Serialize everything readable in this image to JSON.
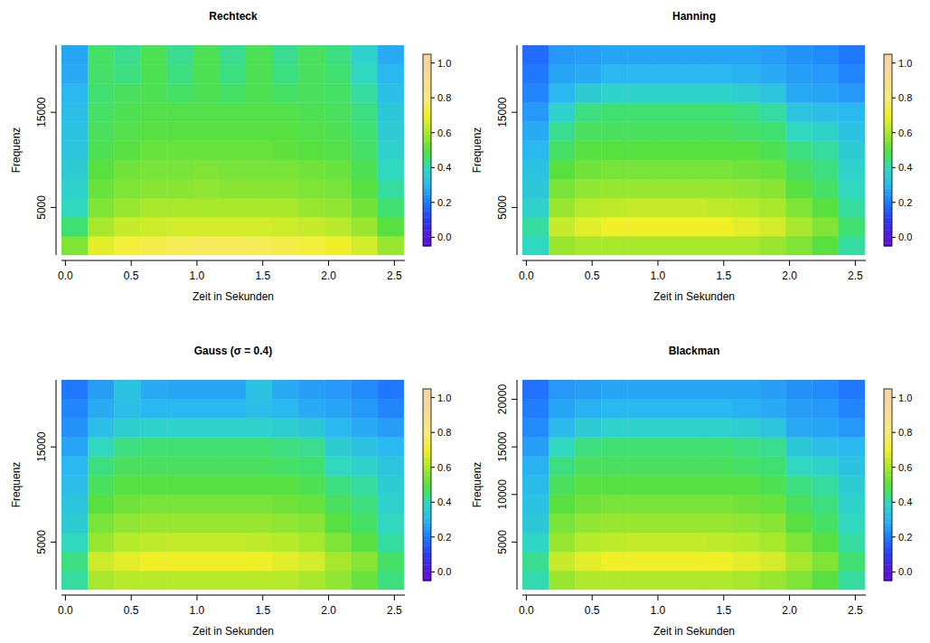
{
  "chart_data": [
    {
      "type": "heatmap",
      "title": "Rechteck",
      "x_label": "Zeit in Sekunden",
      "y_label": "Frequenz",
      "xlim": [
        -0.03,
        2.58
      ],
      "ylim": [
        0,
        22050
      ],
      "xticks": [
        {
          "value": 0,
          "label": "0.0"
        },
        0.5,
        {
          "value": 1,
          "label": "1.0"
        },
        1.5,
        {
          "value": 2,
          "label": "2.0"
        },
        2.5
      ],
      "yticks": [
        5000,
        15000
      ],
      "x": [
        0.07,
        0.27,
        0.47,
        0.67,
        0.87,
        1.07,
        1.27,
        1.47,
        1.67,
        1.87,
        2.07,
        2.27,
        2.47
      ],
      "y": [
        1002,
        3007,
        5011,
        7016,
        9020,
        11025,
        13030,
        15034,
        17039,
        19043,
        21048
      ],
      "z": [
        [
          0.55,
          0.68,
          0.72,
          0.74,
          0.75,
          0.76,
          0.76,
          0.75,
          0.74,
          0.72,
          0.7,
          0.66,
          0.58
        ],
        [
          0.45,
          0.6,
          0.64,
          0.65,
          0.66,
          0.66,
          0.66,
          0.66,
          0.65,
          0.64,
          0.62,
          0.58,
          0.5
        ],
        [
          0.4,
          0.55,
          0.58,
          0.6,
          0.6,
          0.6,
          0.6,
          0.6,
          0.6,
          0.58,
          0.57,
          0.53,
          0.45
        ],
        [
          0.38,
          0.52,
          0.55,
          0.56,
          0.56,
          0.57,
          0.56,
          0.56,
          0.56,
          0.55,
          0.54,
          0.5,
          0.42
        ],
        [
          0.36,
          0.5,
          0.53,
          0.54,
          0.54,
          0.55,
          0.54,
          0.54,
          0.54,
          0.53,
          0.52,
          0.48,
          0.4
        ],
        [
          0.34,
          0.48,
          0.5,
          0.52,
          0.52,
          0.52,
          0.52,
          0.52,
          0.51,
          0.5,
          0.49,
          0.46,
          0.38
        ],
        [
          0.33,
          0.47,
          0.49,
          0.5,
          0.5,
          0.5,
          0.5,
          0.5,
          0.5,
          0.49,
          0.48,
          0.45,
          0.36
        ],
        [
          0.32,
          0.46,
          0.48,
          0.49,
          0.49,
          0.49,
          0.49,
          0.49,
          0.49,
          0.48,
          0.47,
          0.44,
          0.35
        ],
        [
          0.3,
          0.45,
          0.47,
          0.48,
          0.46,
          0.48,
          0.46,
          0.48,
          0.46,
          0.47,
          0.46,
          0.42,
          0.32
        ],
        [
          0.28,
          0.46,
          0.44,
          0.48,
          0.44,
          0.48,
          0.44,
          0.48,
          0.44,
          0.47,
          0.45,
          0.4,
          0.3
        ],
        [
          0.27,
          0.46,
          0.43,
          0.48,
          0.43,
          0.48,
          0.43,
          0.48,
          0.43,
          0.47,
          0.44,
          0.38,
          0.28
        ]
      ],
      "colorbar_lim": [
        -0.05,
        1.05
      ],
      "colorbar_ticks": [
        {
          "value": 0,
          "label": "0.0"
        },
        0.2,
        0.4,
        0.6,
        0.8,
        {
          "value": 1,
          "label": "1.0"
        }
      ]
    },
    {
      "type": "heatmap",
      "title": "Hanning",
      "x_label": "Zeit in Sekunden",
      "y_label": "Frequenz",
      "xlim": [
        -0.03,
        2.58
      ],
      "ylim": [
        0,
        22050
      ],
      "xticks": [
        {
          "value": 0,
          "label": "0.0"
        },
        0.5,
        {
          "value": 1,
          "label": "1.0"
        },
        1.5,
        {
          "value": 2,
          "label": "2.0"
        },
        2.5
      ],
      "yticks": [
        5000,
        15000
      ],
      "x": [
        0.07,
        0.27,
        0.47,
        0.67,
        0.87,
        1.07,
        1.27,
        1.47,
        1.67,
        1.87,
        2.07,
        2.27,
        2.47
      ],
      "y": [
        1002,
        3007,
        5011,
        7016,
        9020,
        11025,
        13030,
        15034,
        17039,
        19043,
        21048
      ],
      "z": [
        [
          0.4,
          0.58,
          0.6,
          0.6,
          0.6,
          0.6,
          0.6,
          0.6,
          0.6,
          0.58,
          0.55,
          0.5,
          0.42
        ],
        [
          0.42,
          0.64,
          0.68,
          0.7,
          0.7,
          0.7,
          0.7,
          0.7,
          0.68,
          0.66,
          0.6,
          0.55,
          0.45
        ],
        [
          0.38,
          0.58,
          0.62,
          0.63,
          0.64,
          0.64,
          0.64,
          0.63,
          0.62,
          0.6,
          0.55,
          0.5,
          0.42
        ],
        [
          0.35,
          0.54,
          0.57,
          0.58,
          0.58,
          0.58,
          0.58,
          0.58,
          0.57,
          0.56,
          0.5,
          0.46,
          0.4
        ],
        [
          0.33,
          0.5,
          0.53,
          0.54,
          0.54,
          0.54,
          0.54,
          0.54,
          0.53,
          0.52,
          0.47,
          0.44,
          0.38
        ],
        [
          0.3,
          0.46,
          0.5,
          0.5,
          0.5,
          0.5,
          0.5,
          0.5,
          0.5,
          0.48,
          0.44,
          0.42,
          0.36
        ],
        [
          0.28,
          0.43,
          0.47,
          0.47,
          0.47,
          0.47,
          0.47,
          0.47,
          0.46,
          0.45,
          0.4,
          0.38,
          0.33
        ],
        [
          0.25,
          0.38,
          0.44,
          0.45,
          0.45,
          0.45,
          0.45,
          0.45,
          0.44,
          0.42,
          0.34,
          0.32,
          0.3
        ],
        [
          0.22,
          0.3,
          0.36,
          0.38,
          0.38,
          0.38,
          0.38,
          0.38,
          0.37,
          0.34,
          0.28,
          0.27,
          0.25
        ],
        [
          0.2,
          0.27,
          0.28,
          0.3,
          0.3,
          0.3,
          0.3,
          0.3,
          0.29,
          0.28,
          0.26,
          0.25,
          0.22
        ],
        [
          0.18,
          0.25,
          0.26,
          0.27,
          0.27,
          0.27,
          0.27,
          0.27,
          0.27,
          0.26,
          0.24,
          0.23,
          0.2
        ]
      ],
      "colorbar_lim": [
        -0.05,
        1.05
      ],
      "colorbar_ticks": [
        {
          "value": 0,
          "label": "0.0"
        },
        0.2,
        0.4,
        0.6,
        0.8,
        {
          "value": 1,
          "label": "1.0"
        }
      ]
    },
    {
      "type": "heatmap",
      "title": "Gauss (σ = 0.4)",
      "x_label": "Zeit in Sekunden",
      "y_label": "Frequenz",
      "xlim": [
        -0.03,
        2.58
      ],
      "ylim": [
        0,
        22050
      ],
      "xticks": [
        {
          "value": 0,
          "label": "0.0"
        },
        0.5,
        {
          "value": 1,
          "label": "1.0"
        },
        1.5,
        {
          "value": 2,
          "label": "2.0"
        },
        2.5
      ],
      "yticks": [
        5000,
        15000
      ],
      "x": [
        0.07,
        0.27,
        0.47,
        0.67,
        0.87,
        1.07,
        1.27,
        1.47,
        1.67,
        1.87,
        2.07,
        2.27,
        2.47
      ],
      "y": [
        1002,
        3007,
        5011,
        7016,
        9020,
        11025,
        13030,
        15034,
        17039,
        19043,
        21048
      ],
      "z": [
        [
          0.42,
          0.6,
          0.62,
          0.62,
          0.62,
          0.62,
          0.62,
          0.62,
          0.62,
          0.6,
          0.57,
          0.52,
          0.44
        ],
        [
          0.44,
          0.65,
          0.68,
          0.7,
          0.7,
          0.7,
          0.7,
          0.7,
          0.68,
          0.66,
          0.6,
          0.56,
          0.46
        ],
        [
          0.4,
          0.58,
          0.62,
          0.63,
          0.64,
          0.64,
          0.64,
          0.63,
          0.62,
          0.6,
          0.55,
          0.5,
          0.42
        ],
        [
          0.36,
          0.54,
          0.57,
          0.58,
          0.58,
          0.58,
          0.58,
          0.58,
          0.57,
          0.56,
          0.5,
          0.46,
          0.4
        ],
        [
          0.34,
          0.5,
          0.53,
          0.54,
          0.54,
          0.54,
          0.54,
          0.54,
          0.53,
          0.52,
          0.47,
          0.44,
          0.38
        ],
        [
          0.32,
          0.47,
          0.5,
          0.5,
          0.5,
          0.5,
          0.5,
          0.5,
          0.5,
          0.48,
          0.44,
          0.42,
          0.36
        ],
        [
          0.3,
          0.44,
          0.47,
          0.47,
          0.47,
          0.47,
          0.47,
          0.47,
          0.46,
          0.45,
          0.4,
          0.38,
          0.34
        ],
        [
          0.27,
          0.4,
          0.44,
          0.45,
          0.45,
          0.45,
          0.45,
          0.45,
          0.44,
          0.43,
          0.36,
          0.33,
          0.3
        ],
        [
          0.24,
          0.32,
          0.37,
          0.38,
          0.38,
          0.38,
          0.38,
          0.38,
          0.37,
          0.35,
          0.3,
          0.28,
          0.26
        ],
        [
          0.22,
          0.28,
          0.32,
          0.3,
          0.3,
          0.3,
          0.3,
          0.32,
          0.3,
          0.28,
          0.27,
          0.25,
          0.22
        ],
        [
          0.2,
          0.26,
          0.33,
          0.28,
          0.27,
          0.27,
          0.27,
          0.33,
          0.28,
          0.26,
          0.25,
          0.23,
          0.2
        ]
      ],
      "colorbar_lim": [
        -0.05,
        1.05
      ],
      "colorbar_ticks": [
        {
          "value": 0,
          "label": "0.0"
        },
        0.2,
        0.4,
        0.6,
        0.8,
        {
          "value": 1,
          "label": "1.0"
        }
      ]
    },
    {
      "type": "heatmap",
      "title": "Blackman",
      "x_label": "Zeit in Sekunden",
      "y_label": "Frequenz",
      "xlim": [
        -0.03,
        2.58
      ],
      "ylim": [
        0,
        22050
      ],
      "xticks": [
        {
          "value": 0,
          "label": "0.0"
        },
        0.5,
        {
          "value": 1,
          "label": "1.0"
        },
        1.5,
        {
          "value": 2,
          "label": "2.0"
        },
        2.5
      ],
      "yticks": [
        5000,
        10000,
        15000,
        20000
      ],
      "x": [
        0.07,
        0.27,
        0.47,
        0.67,
        0.87,
        1.07,
        1.27,
        1.47,
        1.67,
        1.87,
        2.07,
        2.27,
        2.47
      ],
      "y": [
        1002,
        3007,
        5011,
        7016,
        9020,
        11025,
        13030,
        15034,
        17039,
        19043,
        21048
      ],
      "z": [
        [
          0.41,
          0.58,
          0.61,
          0.61,
          0.61,
          0.61,
          0.61,
          0.61,
          0.6,
          0.58,
          0.55,
          0.5,
          0.42
        ],
        [
          0.43,
          0.64,
          0.68,
          0.7,
          0.7,
          0.7,
          0.7,
          0.7,
          0.68,
          0.66,
          0.6,
          0.55,
          0.45
        ],
        [
          0.39,
          0.58,
          0.62,
          0.63,
          0.64,
          0.64,
          0.64,
          0.63,
          0.62,
          0.6,
          0.55,
          0.5,
          0.42
        ],
        [
          0.35,
          0.54,
          0.57,
          0.58,
          0.58,
          0.58,
          0.58,
          0.58,
          0.57,
          0.56,
          0.5,
          0.46,
          0.4
        ],
        [
          0.33,
          0.5,
          0.53,
          0.54,
          0.54,
          0.54,
          0.54,
          0.54,
          0.53,
          0.52,
          0.47,
          0.44,
          0.38
        ],
        [
          0.31,
          0.47,
          0.5,
          0.5,
          0.5,
          0.5,
          0.5,
          0.5,
          0.5,
          0.48,
          0.44,
          0.42,
          0.36
        ],
        [
          0.29,
          0.44,
          0.47,
          0.47,
          0.47,
          0.47,
          0.47,
          0.47,
          0.46,
          0.45,
          0.4,
          0.38,
          0.33
        ],
        [
          0.26,
          0.4,
          0.44,
          0.45,
          0.45,
          0.45,
          0.45,
          0.45,
          0.44,
          0.43,
          0.35,
          0.32,
          0.3
        ],
        [
          0.23,
          0.31,
          0.36,
          0.38,
          0.38,
          0.38,
          0.38,
          0.38,
          0.37,
          0.34,
          0.28,
          0.27,
          0.25
        ],
        [
          0.21,
          0.27,
          0.29,
          0.3,
          0.3,
          0.3,
          0.3,
          0.3,
          0.29,
          0.28,
          0.26,
          0.25,
          0.22
        ],
        [
          0.19,
          0.25,
          0.26,
          0.27,
          0.27,
          0.27,
          0.27,
          0.27,
          0.27,
          0.26,
          0.24,
          0.23,
          0.2
        ]
      ],
      "colorbar_lim": [
        -0.05,
        1.05
      ],
      "colorbar_ticks": [
        {
          "value": 0,
          "label": "0.0"
        },
        0.2,
        0.4,
        0.6,
        0.8,
        {
          "value": 1,
          "label": "1.0"
        }
      ]
    }
  ]
}
